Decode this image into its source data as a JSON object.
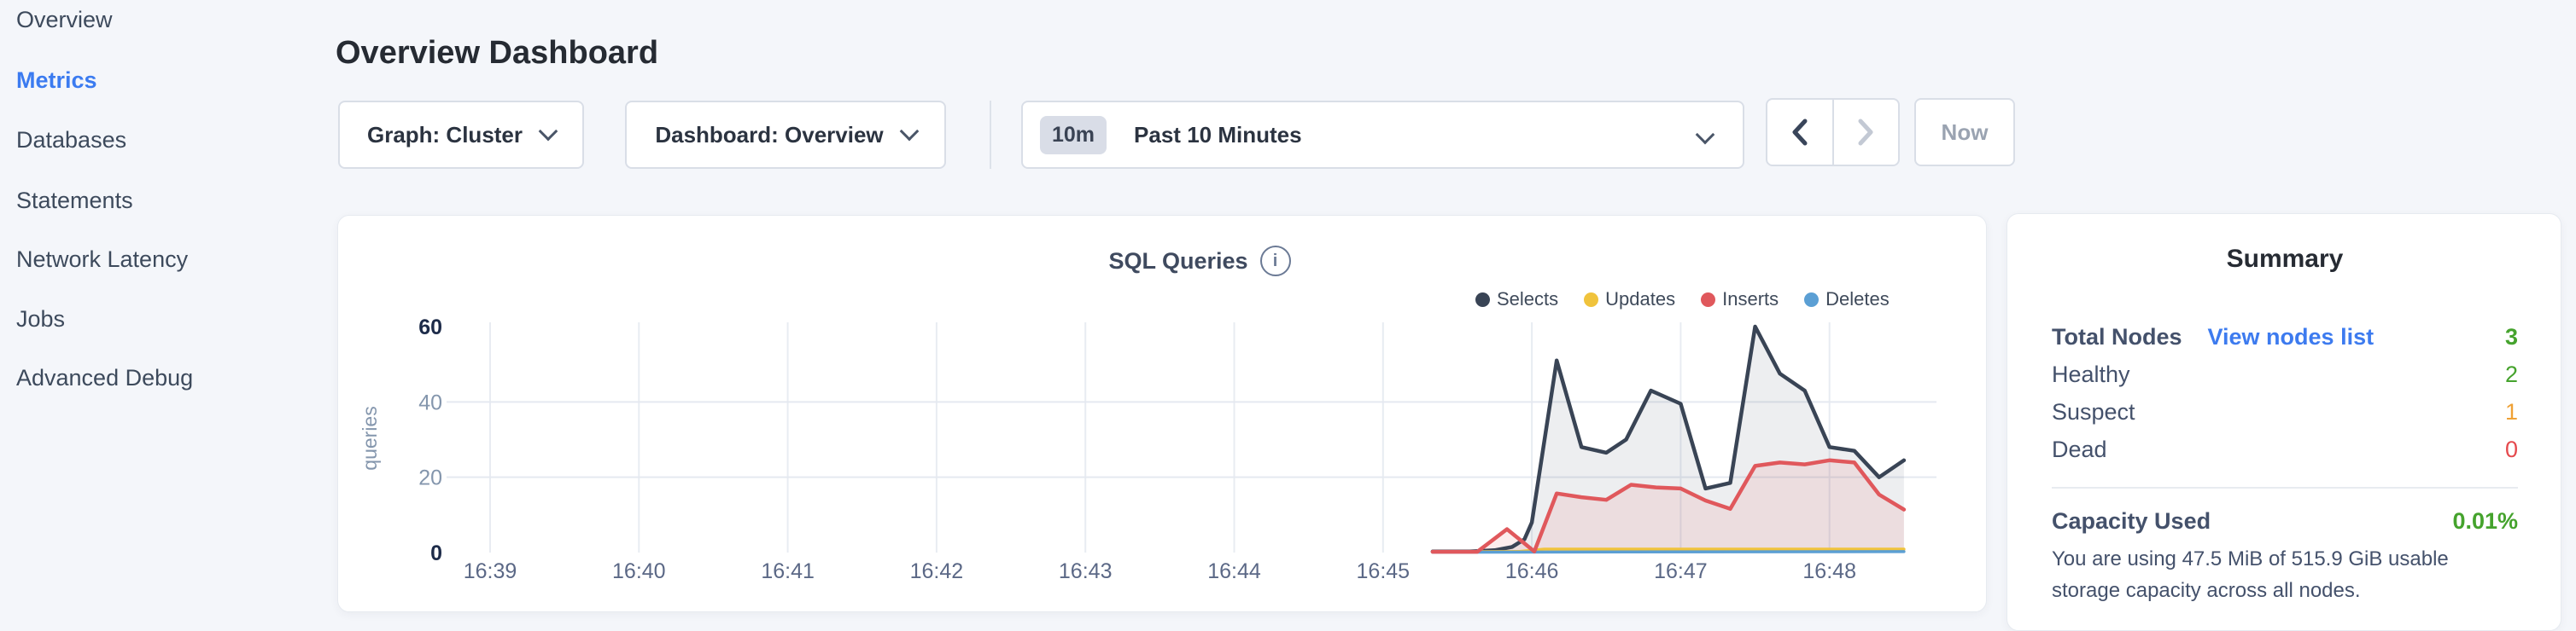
{
  "sidebar": {
    "items": [
      {
        "label": "Overview",
        "active": false
      },
      {
        "label": "Metrics",
        "active": true
      },
      {
        "label": "Databases",
        "active": false
      },
      {
        "label": "Statements",
        "active": false
      },
      {
        "label": "Network Latency",
        "active": false
      },
      {
        "label": "Jobs",
        "active": false
      },
      {
        "label": "Advanced Debug",
        "active": false
      }
    ]
  },
  "header": {
    "title": "Overview Dashboard"
  },
  "controls": {
    "graph_dropdown": "Graph: Cluster",
    "dashboard_dropdown": "Dashboard: Overview",
    "time_range_badge": "10m",
    "time_range_label": "Past 10 Minutes",
    "now_button": "Now"
  },
  "icons": {
    "info": "i"
  },
  "colors": {
    "accent_blue": "#3b7bf0",
    "healthy_green": "#45a32d",
    "suspect_orange": "#efa135",
    "dead_red": "#e5494d",
    "selects_navy": "#394455",
    "updates_yellow": "#f0c33c",
    "inserts_red": "#e0585c",
    "deletes_blue": "#5b9fd4"
  },
  "summary": {
    "heading": "Summary",
    "total_nodes_label": "Total Nodes",
    "view_nodes_link": "View nodes list",
    "total_nodes_value": "3",
    "total_nodes_color": "#45a32d",
    "rows": [
      {
        "label": "Healthy",
        "value": "2",
        "color": "#45a32d"
      },
      {
        "label": "Suspect",
        "value": "1",
        "color": "#efa135"
      },
      {
        "label": "Dead",
        "value": "0",
        "color": "#e5494d"
      }
    ],
    "capacity_label": "Capacity Used",
    "capacity_value": "0.01%",
    "capacity_color": "#45a32d",
    "capacity_description": "You are using 47.5 MiB of 515.9 GiB usable storage capacity across all nodes."
  },
  "chart_data": {
    "type": "area",
    "title": "SQL Queries",
    "ylabel": "queries",
    "ylim": [
      0,
      60
    ],
    "x_domain_seconds": [
      0,
      583
    ],
    "grid": true,
    "legend_position": "top-right",
    "x_ticks": [
      {
        "t": 0,
        "label": "16:39"
      },
      {
        "t": 60,
        "label": "16:40"
      },
      {
        "t": 120,
        "label": "16:41"
      },
      {
        "t": 180,
        "label": "16:42"
      },
      {
        "t": 240,
        "label": "16:43"
      },
      {
        "t": 300,
        "label": "16:44"
      },
      {
        "t": 360,
        "label": "16:45"
      },
      {
        "t": 420,
        "label": "16:46"
      },
      {
        "t": 480,
        "label": "16:47"
      },
      {
        "t": 540,
        "label": "16:48"
      }
    ],
    "y_ticks": [
      {
        "v": 0,
        "label": "0",
        "bold": true,
        "grid": false
      },
      {
        "v": 20,
        "label": "20",
        "bold": false,
        "grid": true
      },
      {
        "v": 40,
        "label": "40",
        "bold": false,
        "grid": true
      },
      {
        "v": 60,
        "label": "60",
        "bold": true,
        "grid": false
      }
    ],
    "legend": [
      {
        "name": "Selects",
        "color": "#394455"
      },
      {
        "name": "Updates",
        "color": "#f0c33c"
      },
      {
        "name": "Inserts",
        "color": "#e0585c"
      },
      {
        "name": "Deletes",
        "color": "#5b9fd4"
      }
    ],
    "series": [
      {
        "name": "Selects",
        "color": "#394455",
        "fill": "rgba(57,68,85,0.09)",
        "width": 4.5,
        "points": [
          [
            380,
            0.3
          ],
          [
            395,
            0.3
          ],
          [
            405,
            0.6
          ],
          [
            412,
            1.5
          ],
          [
            417,
            3.5
          ],
          [
            420,
            8
          ],
          [
            430,
            51
          ],
          [
            440,
            28
          ],
          [
            450,
            26.5
          ],
          [
            458,
            30
          ],
          [
            468,
            43
          ],
          [
            480,
            39.5
          ],
          [
            490,
            17
          ],
          [
            500,
            18.5
          ],
          [
            510,
            60
          ],
          [
            520,
            47.5
          ],
          [
            530,
            43
          ],
          [
            540,
            28
          ],
          [
            550,
            27
          ],
          [
            560,
            20
          ],
          [
            570,
            24.5
          ]
        ]
      },
      {
        "name": "Updates",
        "color": "#f0c33c",
        "fill": "rgba(240,195,60,0.18)",
        "width": 3.5,
        "points": [
          [
            380,
            0.15
          ],
          [
            415,
            0.3
          ],
          [
            425,
            0.9
          ],
          [
            570,
            0.9
          ]
        ]
      },
      {
        "name": "Deletes",
        "color": "#5b9fd4",
        "fill": "rgba(91,159,212,0.15)",
        "width": 3.5,
        "points": [
          [
            380,
            0.1
          ],
          [
            570,
            0.25
          ]
        ]
      },
      {
        "name": "Inserts",
        "color": "#e0585c",
        "fill": "rgba(224,88,92,0.11)",
        "width": 4.5,
        "points": [
          [
            380,
            0.2
          ],
          [
            398,
            0.2
          ],
          [
            410,
            6.2
          ],
          [
            421,
            0.3
          ],
          [
            430,
            15.7
          ],
          [
            440,
            14.7
          ],
          [
            450,
            14
          ],
          [
            460,
            18
          ],
          [
            470,
            17.3
          ],
          [
            480,
            17
          ],
          [
            490,
            13.8
          ],
          [
            500,
            11.6
          ],
          [
            510,
            23
          ],
          [
            520,
            23.9
          ],
          [
            530,
            23.4
          ],
          [
            540,
            24.5
          ],
          [
            550,
            23.9
          ],
          [
            560,
            15.4
          ],
          [
            570,
            11.4
          ]
        ]
      }
    ]
  }
}
